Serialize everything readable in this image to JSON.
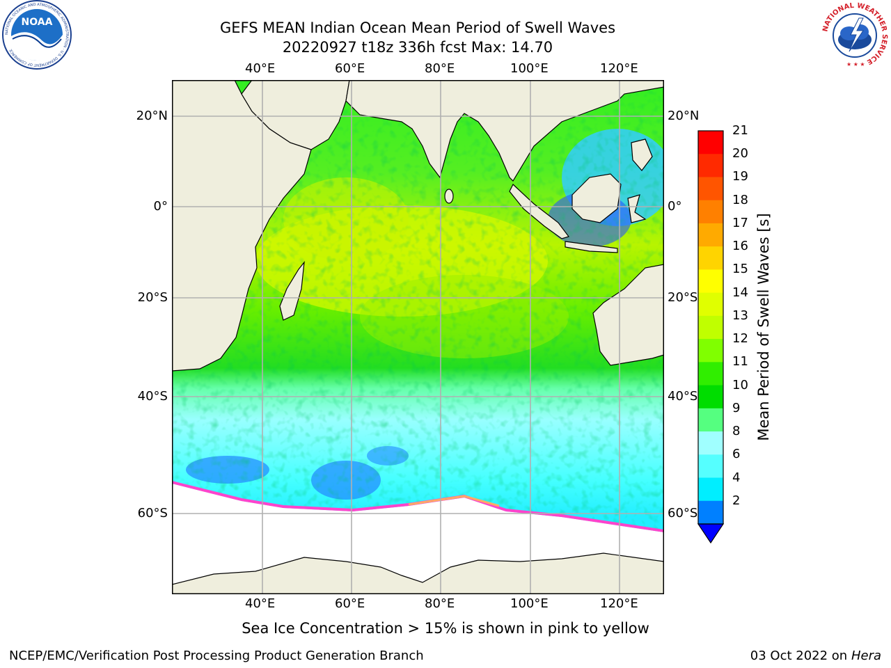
{
  "title": {
    "line1": "GEFS MEAN Indian Ocean Mean Period of Swell Waves",
    "line2": "20220927 t18z 336h fcst   Max: 14.70"
  },
  "map": {
    "lon_ticks": [
      "40°E",
      "60°E",
      "80°E",
      "100°E",
      "120°E"
    ],
    "lat_ticks": [
      "20°N",
      "0°",
      "20°S",
      "40°S",
      "60°S"
    ],
    "grid": true,
    "land_color": "#efeedd",
    "ice_region_color": "#ffffff"
  },
  "colorbar": {
    "label": "Mean Period of Swell Waves [s]",
    "ticks": [
      "21",
      "20",
      "19",
      "18",
      "17",
      "16",
      "15",
      "14",
      "13",
      "12",
      "11",
      "10",
      "9",
      "8",
      "6",
      "4",
      "2"
    ],
    "colors": [
      "#ff0000",
      "#ff2a00",
      "#ff5500",
      "#ff8000",
      "#ffaa00",
      "#ffd400",
      "#ffff00",
      "#e0ff00",
      "#c0ff00",
      "#80ff00",
      "#30ee00",
      "#00dd00",
      "#55ff80",
      "#a0ffff",
      "#55ffff",
      "#00eeff",
      "#0080ff"
    ],
    "under_color": "#0000ff"
  },
  "note": "Sea Ice Concentration > 15% is shown in pink to yellow",
  "footer": {
    "left": "NCEP/EMC/Verification Post Processing Product Generation Branch",
    "right_date": "03 Oct 2022 on ",
    "right_machine": "Hera"
  },
  "logos": {
    "noaa_text": "NOAA",
    "noaa_ring": "NATIONAL OCEANIC AND ATMOSPHERIC ADMINISTRATION · U.S. DEPARTMENT OF COMMERCE",
    "nws_ring": "NATIONAL WEATHER SERVICE"
  }
}
